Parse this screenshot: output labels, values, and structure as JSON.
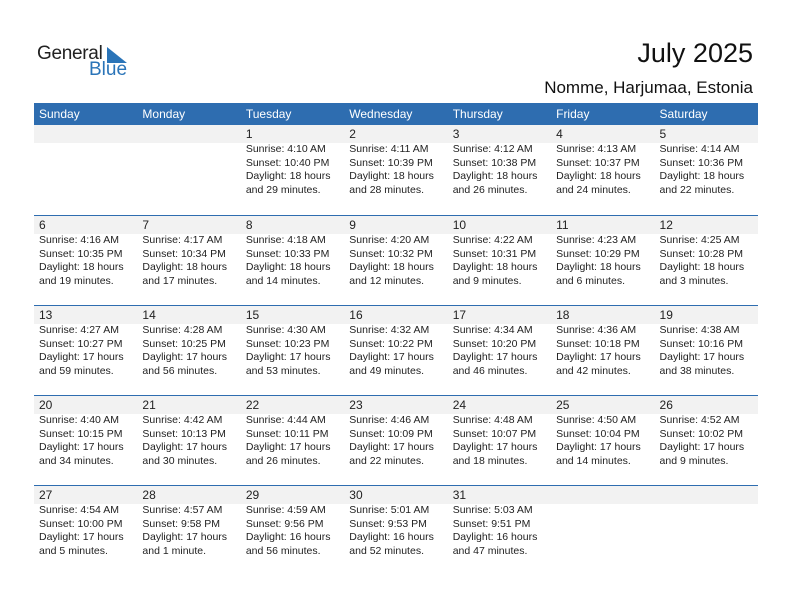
{
  "logo": {
    "word1": "General",
    "word2": "Blue"
  },
  "header": {
    "title": "July 2025",
    "location": "Nomme, Harjumaa, Estonia"
  },
  "colors": {
    "accent": "#2e6db0",
    "band": "#f2f2f2"
  },
  "weekdays": [
    "Sunday",
    "Monday",
    "Tuesday",
    "Wednesday",
    "Thursday",
    "Friday",
    "Saturday"
  ],
  "weeks": [
    [
      null,
      null,
      {
        "day": "1",
        "sunrise": "Sunrise: 4:10 AM",
        "sunset": "Sunset: 10:40 PM",
        "daylight": "Daylight: 18 hours",
        "daylight2": "and 29 minutes."
      },
      {
        "day": "2",
        "sunrise": "Sunrise: 4:11 AM",
        "sunset": "Sunset: 10:39 PM",
        "daylight": "Daylight: 18 hours",
        "daylight2": "and 28 minutes."
      },
      {
        "day": "3",
        "sunrise": "Sunrise: 4:12 AM",
        "sunset": "Sunset: 10:38 PM",
        "daylight": "Daylight: 18 hours",
        "daylight2": "and 26 minutes."
      },
      {
        "day": "4",
        "sunrise": "Sunrise: 4:13 AM",
        "sunset": "Sunset: 10:37 PM",
        "daylight": "Daylight: 18 hours",
        "daylight2": "and 24 minutes."
      },
      {
        "day": "5",
        "sunrise": "Sunrise: 4:14 AM",
        "sunset": "Sunset: 10:36 PM",
        "daylight": "Daylight: 18 hours",
        "daylight2": "and 22 minutes."
      }
    ],
    [
      {
        "day": "6",
        "sunrise": "Sunrise: 4:16 AM",
        "sunset": "Sunset: 10:35 PM",
        "daylight": "Daylight: 18 hours",
        "daylight2": "and 19 minutes."
      },
      {
        "day": "7",
        "sunrise": "Sunrise: 4:17 AM",
        "sunset": "Sunset: 10:34 PM",
        "daylight": "Daylight: 18 hours",
        "daylight2": "and 17 minutes."
      },
      {
        "day": "8",
        "sunrise": "Sunrise: 4:18 AM",
        "sunset": "Sunset: 10:33 PM",
        "daylight": "Daylight: 18 hours",
        "daylight2": "and 14 minutes."
      },
      {
        "day": "9",
        "sunrise": "Sunrise: 4:20 AM",
        "sunset": "Sunset: 10:32 PM",
        "daylight": "Daylight: 18 hours",
        "daylight2": "and 12 minutes."
      },
      {
        "day": "10",
        "sunrise": "Sunrise: 4:22 AM",
        "sunset": "Sunset: 10:31 PM",
        "daylight": "Daylight: 18 hours",
        "daylight2": "and 9 minutes."
      },
      {
        "day": "11",
        "sunrise": "Sunrise: 4:23 AM",
        "sunset": "Sunset: 10:29 PM",
        "daylight": "Daylight: 18 hours",
        "daylight2": "and 6 minutes."
      },
      {
        "day": "12",
        "sunrise": "Sunrise: 4:25 AM",
        "sunset": "Sunset: 10:28 PM",
        "daylight": "Daylight: 18 hours",
        "daylight2": "and 3 minutes."
      }
    ],
    [
      {
        "day": "13",
        "sunrise": "Sunrise: 4:27 AM",
        "sunset": "Sunset: 10:27 PM",
        "daylight": "Daylight: 17 hours",
        "daylight2": "and 59 minutes."
      },
      {
        "day": "14",
        "sunrise": "Sunrise: 4:28 AM",
        "sunset": "Sunset: 10:25 PM",
        "daylight": "Daylight: 17 hours",
        "daylight2": "and 56 minutes."
      },
      {
        "day": "15",
        "sunrise": "Sunrise: 4:30 AM",
        "sunset": "Sunset: 10:23 PM",
        "daylight": "Daylight: 17 hours",
        "daylight2": "and 53 minutes."
      },
      {
        "day": "16",
        "sunrise": "Sunrise: 4:32 AM",
        "sunset": "Sunset: 10:22 PM",
        "daylight": "Daylight: 17 hours",
        "daylight2": "and 49 minutes."
      },
      {
        "day": "17",
        "sunrise": "Sunrise: 4:34 AM",
        "sunset": "Sunset: 10:20 PM",
        "daylight": "Daylight: 17 hours",
        "daylight2": "and 46 minutes."
      },
      {
        "day": "18",
        "sunrise": "Sunrise: 4:36 AM",
        "sunset": "Sunset: 10:18 PM",
        "daylight": "Daylight: 17 hours",
        "daylight2": "and 42 minutes."
      },
      {
        "day": "19",
        "sunrise": "Sunrise: 4:38 AM",
        "sunset": "Sunset: 10:16 PM",
        "daylight": "Daylight: 17 hours",
        "daylight2": "and 38 minutes."
      }
    ],
    [
      {
        "day": "20",
        "sunrise": "Sunrise: 4:40 AM",
        "sunset": "Sunset: 10:15 PM",
        "daylight": "Daylight: 17 hours",
        "daylight2": "and 34 minutes."
      },
      {
        "day": "21",
        "sunrise": "Sunrise: 4:42 AM",
        "sunset": "Sunset: 10:13 PM",
        "daylight": "Daylight: 17 hours",
        "daylight2": "and 30 minutes."
      },
      {
        "day": "22",
        "sunrise": "Sunrise: 4:44 AM",
        "sunset": "Sunset: 10:11 PM",
        "daylight": "Daylight: 17 hours",
        "daylight2": "and 26 minutes."
      },
      {
        "day": "23",
        "sunrise": "Sunrise: 4:46 AM",
        "sunset": "Sunset: 10:09 PM",
        "daylight": "Daylight: 17 hours",
        "daylight2": "and 22 minutes."
      },
      {
        "day": "24",
        "sunrise": "Sunrise: 4:48 AM",
        "sunset": "Sunset: 10:07 PM",
        "daylight": "Daylight: 17 hours",
        "daylight2": "and 18 minutes."
      },
      {
        "day": "25",
        "sunrise": "Sunrise: 4:50 AM",
        "sunset": "Sunset: 10:04 PM",
        "daylight": "Daylight: 17 hours",
        "daylight2": "and 14 minutes."
      },
      {
        "day": "26",
        "sunrise": "Sunrise: 4:52 AM",
        "sunset": "Sunset: 10:02 PM",
        "daylight": "Daylight: 17 hours",
        "daylight2": "and 9 minutes."
      }
    ],
    [
      {
        "day": "27",
        "sunrise": "Sunrise: 4:54 AM",
        "sunset": "Sunset: 10:00 PM",
        "daylight": "Daylight: 17 hours",
        "daylight2": "and 5 minutes."
      },
      {
        "day": "28",
        "sunrise": "Sunrise: 4:57 AM",
        "sunset": "Sunset: 9:58 PM",
        "daylight": "Daylight: 17 hours",
        "daylight2": "and 1 minute."
      },
      {
        "day": "29",
        "sunrise": "Sunrise: 4:59 AM",
        "sunset": "Sunset: 9:56 PM",
        "daylight": "Daylight: 16 hours",
        "daylight2": "and 56 minutes."
      },
      {
        "day": "30",
        "sunrise": "Sunrise: 5:01 AM",
        "sunset": "Sunset: 9:53 PM",
        "daylight": "Daylight: 16 hours",
        "daylight2": "and 52 minutes."
      },
      {
        "day": "31",
        "sunrise": "Sunrise: 5:03 AM",
        "sunset": "Sunset: 9:51 PM",
        "daylight": "Daylight: 16 hours",
        "daylight2": "and 47 minutes."
      },
      null,
      null
    ]
  ]
}
